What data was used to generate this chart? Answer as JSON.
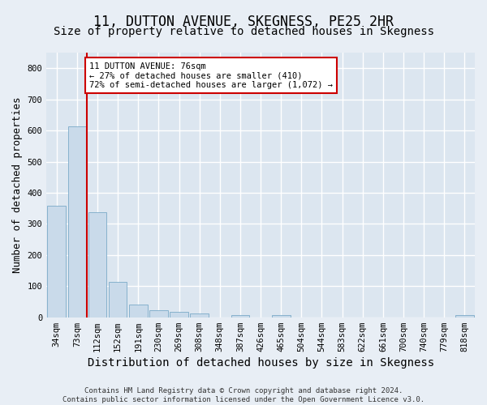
{
  "title": "11, DUTTON AVENUE, SKEGNESS, PE25 2HR",
  "subtitle": "Size of property relative to detached houses in Skegness",
  "xlabel": "Distribution of detached houses by size in Skegness",
  "ylabel": "Number of detached properties",
  "bar_labels": [
    "34sqm",
    "73sqm",
    "112sqm",
    "152sqm",
    "191sqm",
    "230sqm",
    "269sqm",
    "308sqm",
    "348sqm",
    "387sqm",
    "426sqm",
    "465sqm",
    "504sqm",
    "544sqm",
    "583sqm",
    "622sqm",
    "661sqm",
    "700sqm",
    "740sqm",
    "779sqm",
    "818sqm"
  ],
  "bar_values": [
    358,
    612,
    338,
    113,
    40,
    22,
    18,
    13,
    0,
    7,
    0,
    8,
    0,
    0,
    0,
    0,
    0,
    0,
    0,
    0,
    7
  ],
  "bar_color": "#c9daea",
  "bar_edge_color": "#7aaac8",
  "vline_x": 1.47,
  "vline_color": "#cc0000",
  "annotation_line1": "11 DUTTON AVENUE: 76sqm",
  "annotation_line2": "← 27% of detached houses are smaller (410)",
  "annotation_line3": "72% of semi-detached houses are larger (1,072) →",
  "annotation_box_facecolor": "#ffffff",
  "annotation_box_edgecolor": "#cc0000",
  "ylim": [
    0,
    850
  ],
  "yticks": [
    0,
    100,
    200,
    300,
    400,
    500,
    600,
    700,
    800
  ],
  "bg_color": "#e8eef5",
  "plot_bg_color": "#dce6f0",
  "grid_color": "#ffffff",
  "title_fontsize": 12,
  "subtitle_fontsize": 10,
  "xlabel_fontsize": 10,
  "ylabel_fontsize": 9,
  "tick_fontsize": 7.5,
  "annot_fontsize": 7.5,
  "footer_fontsize": 6.5,
  "footer1": "Contains HM Land Registry data © Crown copyright and database right 2024.",
  "footer2": "Contains public sector information licensed under the Open Government Licence v3.0."
}
